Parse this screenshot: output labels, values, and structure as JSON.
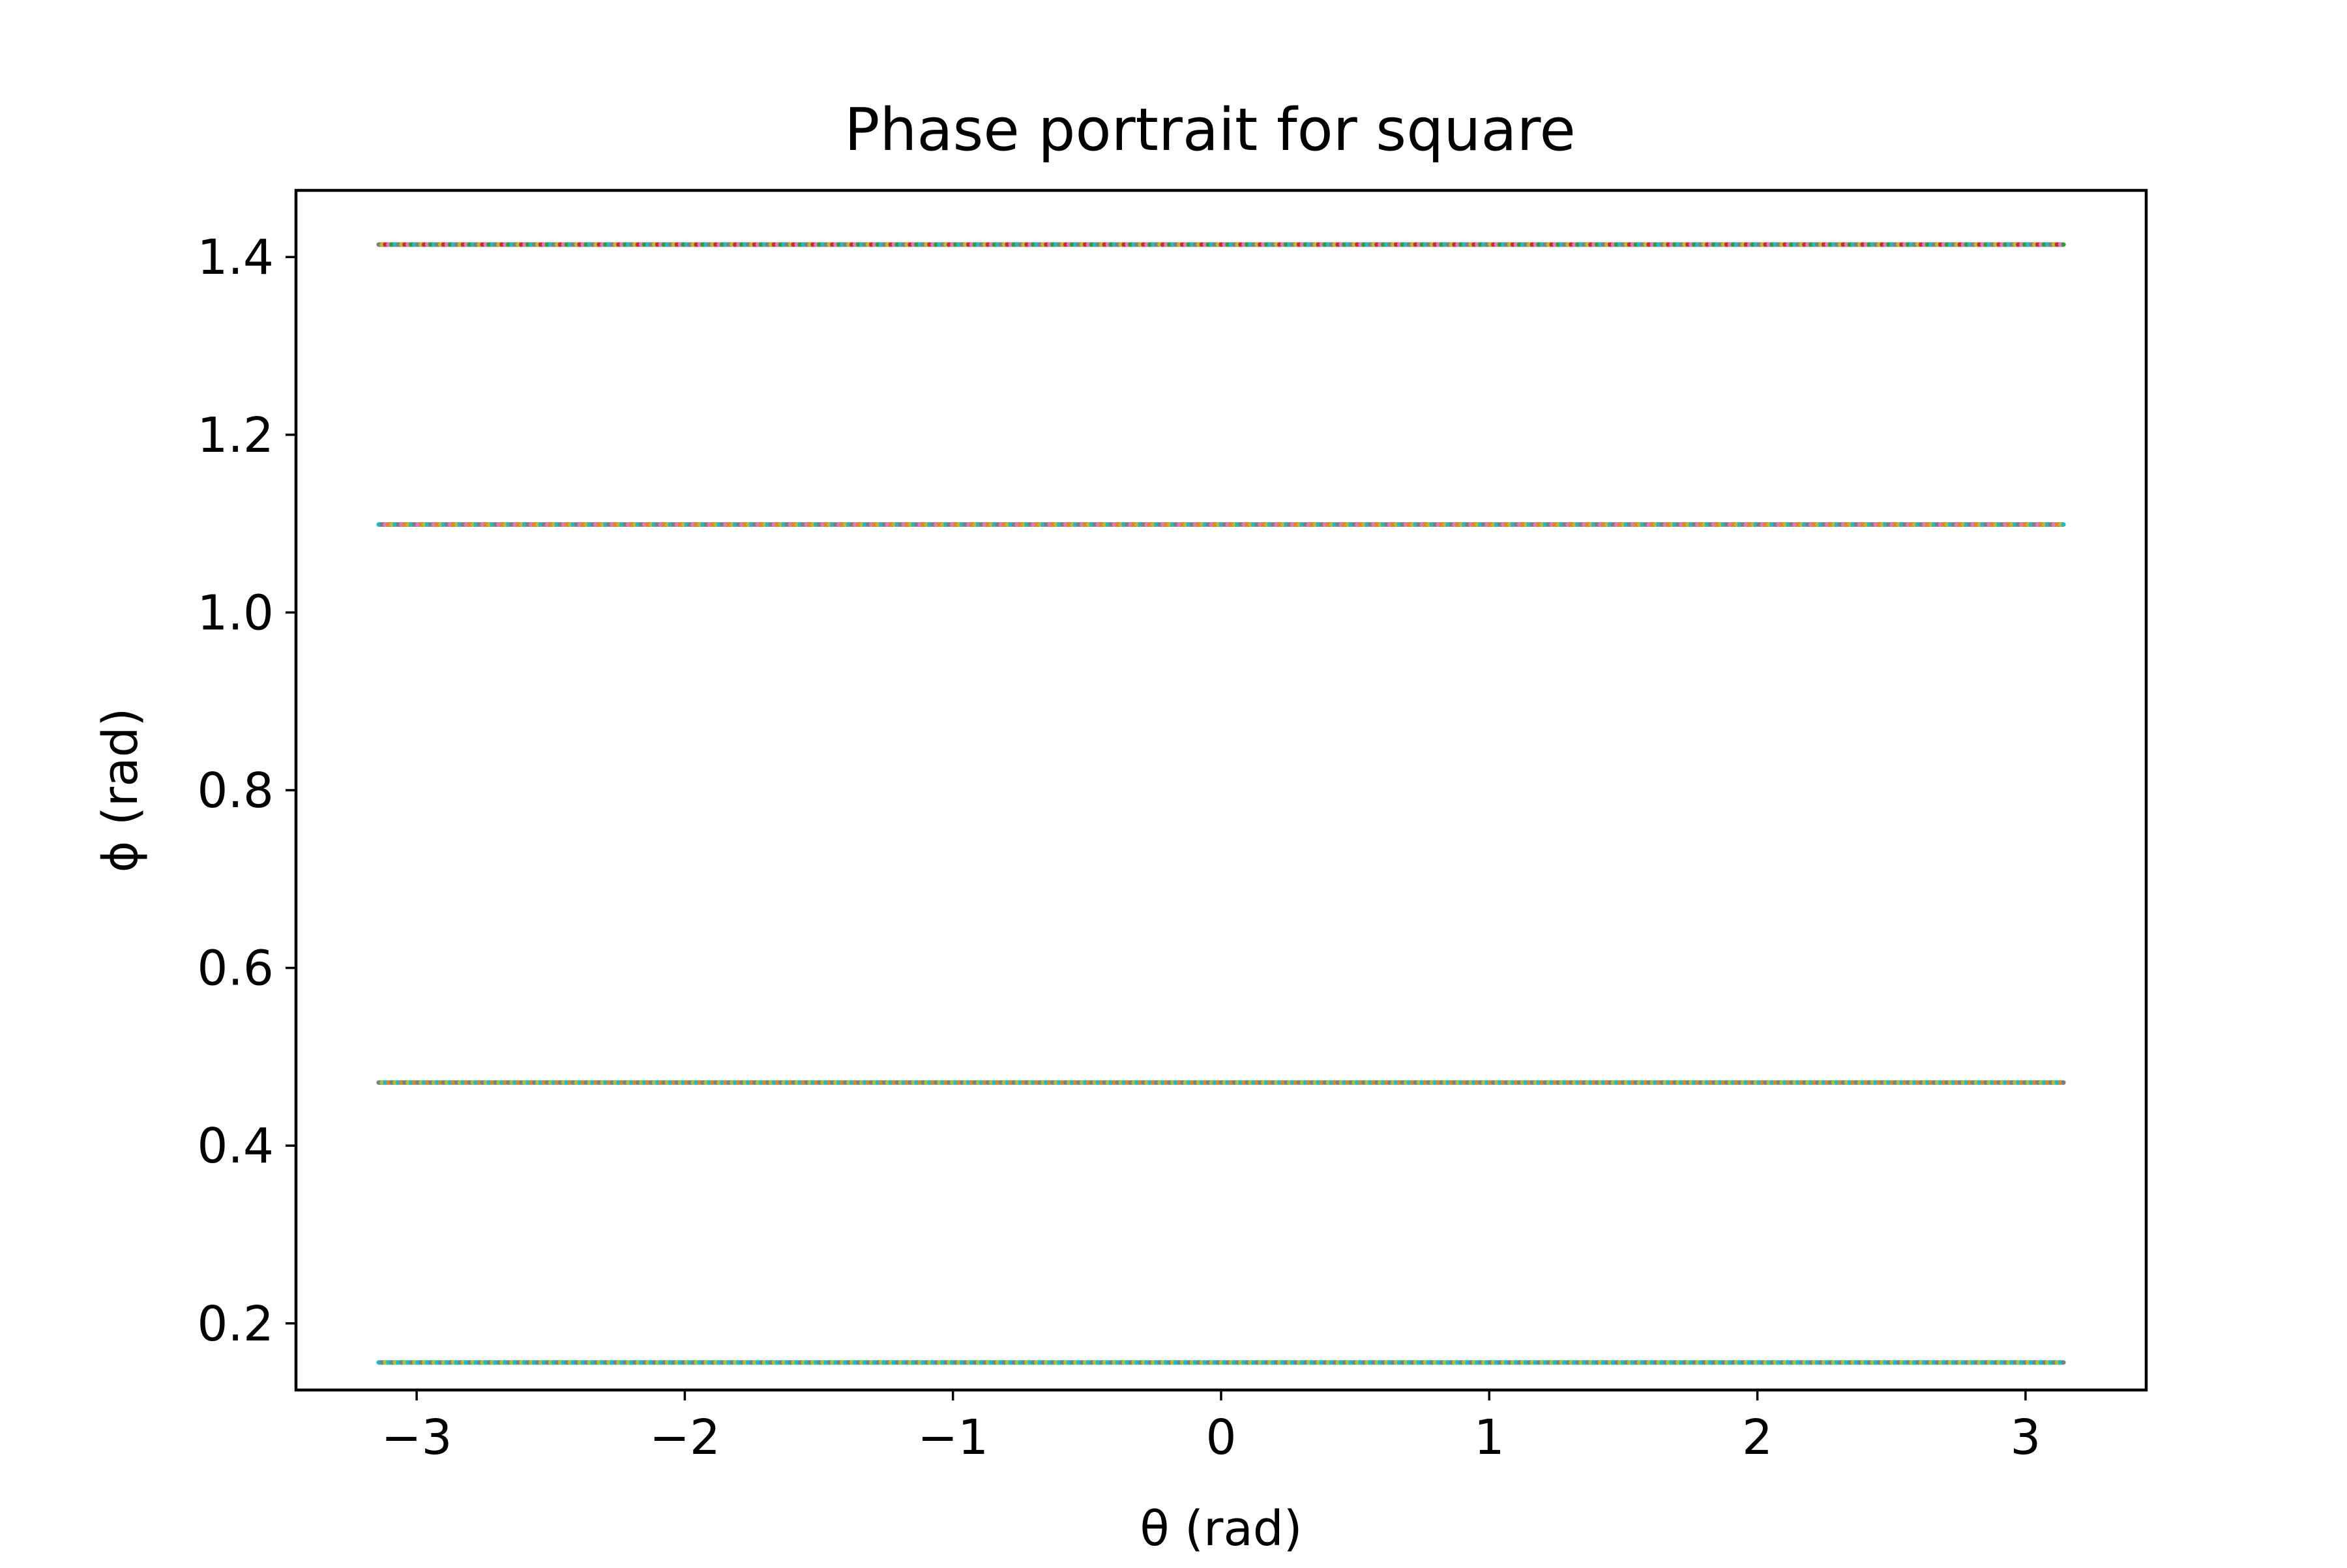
{
  "chart_data": {
    "type": "scatter",
    "title": "Phase portrait for square",
    "xlabel": "θ (rad)",
    "ylabel": "ϕ (rad)",
    "xlim": [
      -3.45,
      3.45
    ],
    "ylim": [
      0.125,
      1.475
    ],
    "x_ticks": [
      {
        "value": -3,
        "label": "−3"
      },
      {
        "value": -2,
        "label": "−2"
      },
      {
        "value": -1,
        "label": "−1"
      },
      {
        "value": 0,
        "label": "0"
      },
      {
        "value": 1,
        "label": "1"
      },
      {
        "value": 2,
        "label": "2"
      },
      {
        "value": 3,
        "label": "3"
      }
    ],
    "y_ticks": [
      {
        "value": 0.2,
        "label": "0.2"
      },
      {
        "value": 0.4,
        "label": "0.4"
      },
      {
        "value": 0.6,
        "label": "0.6"
      },
      {
        "value": 0.8,
        "label": "0.8"
      },
      {
        "value": 1.0,
        "label": "1.0"
      },
      {
        "value": 1.2,
        "label": "1.2"
      },
      {
        "value": 1.4,
        "label": "1.4"
      }
    ],
    "grid": false,
    "x_range_of_points": [
      -3.1416,
      3.1416
    ],
    "series": [
      {
        "y": 1.414,
        "colors": [
          "#7f7f7f",
          "#bcbd22",
          "#d62728",
          "#e377c2",
          "#2ca02c",
          "#17becf"
        ]
      },
      {
        "y": 1.099,
        "colors": [
          "#7f7f7f",
          "#bcbd22",
          "#e377c2",
          "#17becf",
          "#ff7f0e"
        ]
      },
      {
        "y": 0.471,
        "colors": [
          "#17becf",
          "#bcbd22",
          "#7f7f7f",
          "#ff7f0e"
        ]
      },
      {
        "y": 0.156,
        "colors": [
          "#17becf",
          "#7f7f7f",
          "#bcbd22"
        ]
      }
    ]
  }
}
